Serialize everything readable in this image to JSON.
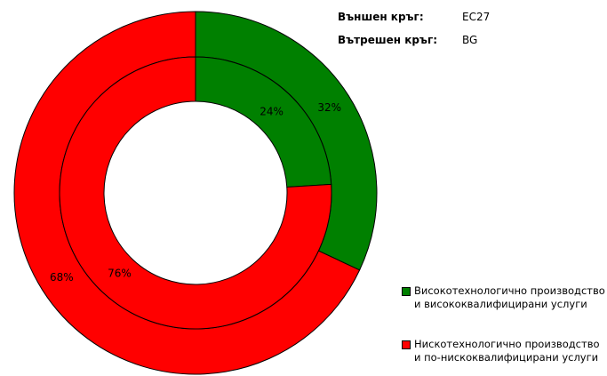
{
  "chart_data": {
    "type": "donut",
    "outer_label": "Външен кръг:",
    "inner_label": "Вътрешен кръг:",
    "categories": [
      "Високотехнологично производство и висококвалифицирани услуги",
      "Нискотехнологично производство и по-нискоквалифицирани услуги"
    ],
    "colors": [
      "#008000",
      "#ff0000"
    ],
    "series": [
      {
        "name": "EC27",
        "values": [
          32,
          68
        ],
        "value_labels": [
          "32%",
          "68%"
        ]
      },
      {
        "name": "BG",
        "values": [
          24,
          76
        ],
        "value_labels": [
          "24%",
          "76%"
        ]
      }
    ]
  }
}
